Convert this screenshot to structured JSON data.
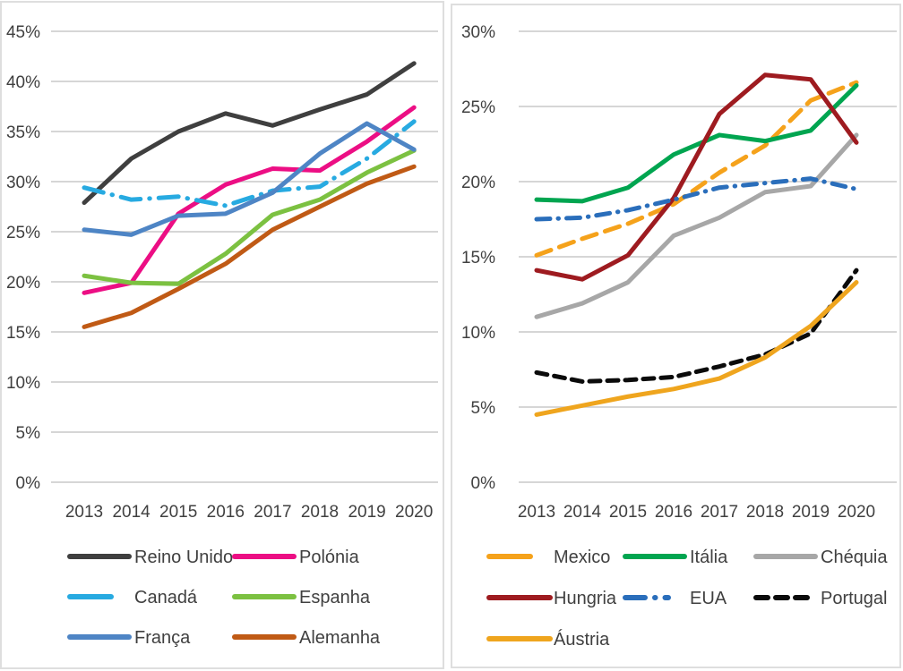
{
  "figure": {
    "description": "Two line charts comparing country percentage series 2013-2020",
    "grid_color": "#c8c8c8",
    "text_color": "#404040"
  },
  "chart_data": [
    {
      "type": "line",
      "title": "",
      "xlabel": "",
      "ylabel": "",
      "x_categories": [
        "2013",
        "2014",
        "2015",
        "2016",
        "2017",
        "2018",
        "2019",
        "2020"
      ],
      "ylim": [
        0,
        45
      ],
      "ytick_step": 5,
      "ytick_suffix": "%",
      "grid": true,
      "legend_position": "bottom",
      "legend_columns": 2,
      "series": [
        {
          "name": "Reino Unido",
          "color": "#3f3f3f",
          "line_style": "solid",
          "values": [
            27.9,
            32.3,
            35.0,
            36.8,
            35.6,
            37.2,
            38.7,
            41.8
          ]
        },
        {
          "name": "Polónia",
          "color": "#ec0e84",
          "line_style": "solid",
          "values": [
            18.9,
            19.9,
            26.8,
            29.7,
            31.3,
            31.1,
            34.0,
            37.4
          ]
        },
        {
          "name": "Canadá",
          "color": "#27aae1",
          "line_style": "dash-dot",
          "values": [
            29.4,
            28.2,
            28.5,
            27.6,
            29.1,
            29.5,
            32.3,
            36.0
          ]
        },
        {
          "name": "Espanha",
          "color": "#7cc141",
          "line_style": "solid",
          "values": [
            20.6,
            19.9,
            19.8,
            22.8,
            26.7,
            28.2,
            30.9,
            33.1
          ]
        },
        {
          "name": "França",
          "color": "#4e85c5",
          "line_style": "solid",
          "values": [
            25.2,
            24.7,
            26.6,
            26.8,
            28.9,
            32.8,
            35.8,
            33.2
          ]
        },
        {
          "name": "Alemanha",
          "color": "#c05a15",
          "line_style": "solid",
          "values": [
            15.5,
            16.9,
            19.3,
            21.8,
            25.2,
            27.5,
            29.8,
            31.5
          ]
        }
      ]
    },
    {
      "type": "line",
      "title": "",
      "xlabel": "",
      "ylabel": "",
      "x_categories": [
        "2013",
        "2014",
        "2015",
        "2016",
        "2017",
        "2018",
        "2019",
        "2020"
      ],
      "ylim": [
        0,
        30
      ],
      "ytick_step": 5,
      "ytick_suffix": "%",
      "grid": true,
      "legend_position": "bottom",
      "legend_columns": 3,
      "series": [
        {
          "name": "Mexico",
          "color": "#f5a21b",
          "line_style": "dashed",
          "values": [
            15.1,
            16.2,
            17.2,
            18.5,
            20.6,
            22.4,
            25.4,
            26.6
          ]
        },
        {
          "name": "Itália",
          "color": "#00a550",
          "line_style": "solid",
          "values": [
            18.8,
            18.7,
            19.6,
            21.8,
            23.1,
            22.7,
            23.4,
            26.4
          ]
        },
        {
          "name": "Chéquia",
          "color": "#a7a7a7",
          "line_style": "solid",
          "values": [
            11.0,
            11.9,
            13.3,
            16.4,
            17.6,
            19.3,
            19.7,
            23.1
          ]
        },
        {
          "name": "Hungria",
          "color": "#9e1b20",
          "line_style": "solid",
          "values": [
            14.1,
            13.5,
            15.1,
            18.9,
            24.5,
            27.1,
            26.8,
            22.6
          ]
        },
        {
          "name": "EUA",
          "color": "#2a6ebb",
          "line_style": "dash-dot",
          "values": [
            17.5,
            17.6,
            18.1,
            18.8,
            19.6,
            19.9,
            20.2,
            19.5
          ]
        },
        {
          "name": "Portugal",
          "color": "#0b0b0b",
          "line_style": "dashed",
          "values": [
            7.3,
            6.7,
            6.8,
            7.0,
            7.7,
            8.5,
            9.9,
            14.1
          ]
        },
        {
          "name": "Áustria",
          "color": "#efa51e",
          "line_style": "solid",
          "values": [
            4.5,
            5.1,
            5.7,
            6.2,
            6.9,
            8.3,
            10.4,
            13.3
          ]
        }
      ]
    }
  ]
}
